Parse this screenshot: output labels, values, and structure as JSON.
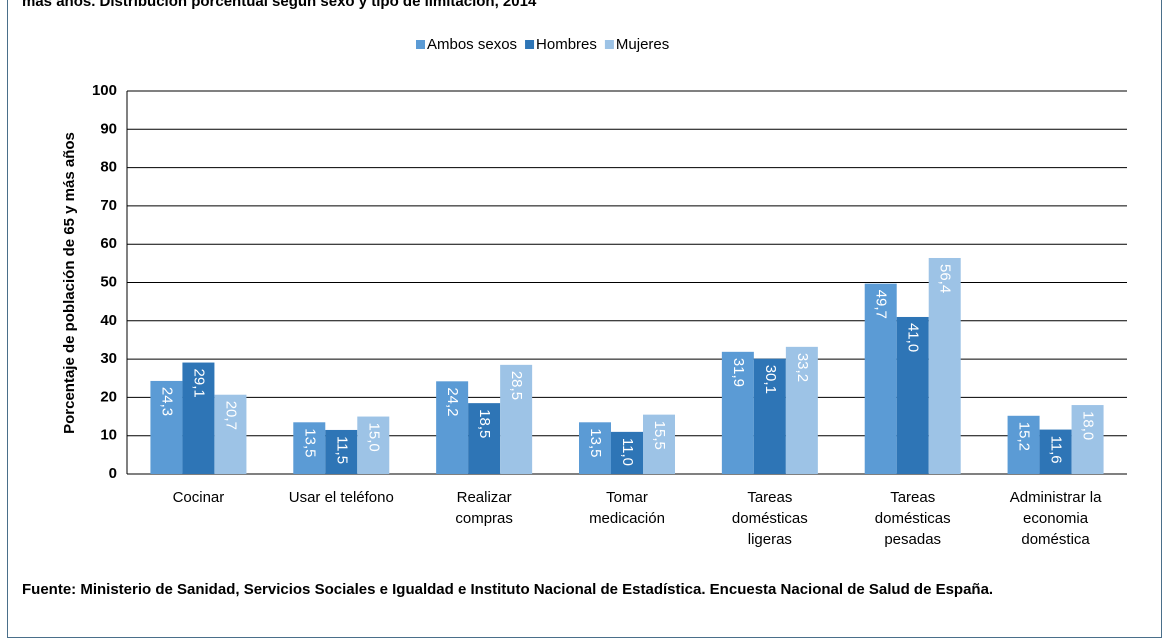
{
  "chart_data": {
    "type": "bar",
    "title": "más años. Distribución porcentual según sexo y tipo de limitación, 2014",
    "ylabel": "Porcentaje de población de 65 y más años",
    "categories": [
      [
        "Cocinar"
      ],
      [
        "Usar el teléfono"
      ],
      [
        "Realizar",
        "compras"
      ],
      [
        "Tomar",
        "medicación"
      ],
      [
        "Tareas",
        "domésticas",
        "ligeras"
      ],
      [
        "Tareas",
        "domésticas",
        "pesadas"
      ],
      [
        "Administrar la",
        "economia",
        "doméstica"
      ]
    ],
    "series": [
      {
        "name": "Ambos sexos",
        "color": "#5b9bd5",
        "values": [
          24.3,
          13.5,
          24.2,
          13.5,
          31.9,
          49.7,
          15.2
        ],
        "value_labels": [
          "24,3",
          "13,5",
          "24,2",
          "13,5",
          "31,9",
          "49,7",
          "15,2"
        ]
      },
      {
        "name": "Hombres",
        "color": "#2e75b6",
        "values": [
          29.1,
          11.5,
          18.5,
          11.0,
          30.1,
          41.0,
          11.6
        ],
        "value_labels": [
          "29,1",
          "11,5",
          "18,5",
          "11,0",
          "30,1",
          "41,0",
          "11,6"
        ]
      },
      {
        "name": "Mujeres",
        "color": "#9dc3e6",
        "values": [
          20.7,
          15.0,
          28.5,
          15.5,
          33.2,
          56.4,
          18.0
        ],
        "value_labels": [
          "20,7",
          "15,0",
          "28,5",
          "15,5",
          "33,2",
          "56,4",
          "18,0"
        ]
      }
    ],
    "ylim": [
      0,
      100
    ],
    "yticks": [
      0,
      10,
      20,
      30,
      40,
      50,
      60,
      70,
      80,
      90,
      100
    ],
    "grid": true,
    "legend": "top",
    "source": "Fuente: Ministerio de Sanidad, Servicios Sociales e Igualdad e Instituto Nacional de Estadística. Encuesta Nacional de Salud de España."
  }
}
